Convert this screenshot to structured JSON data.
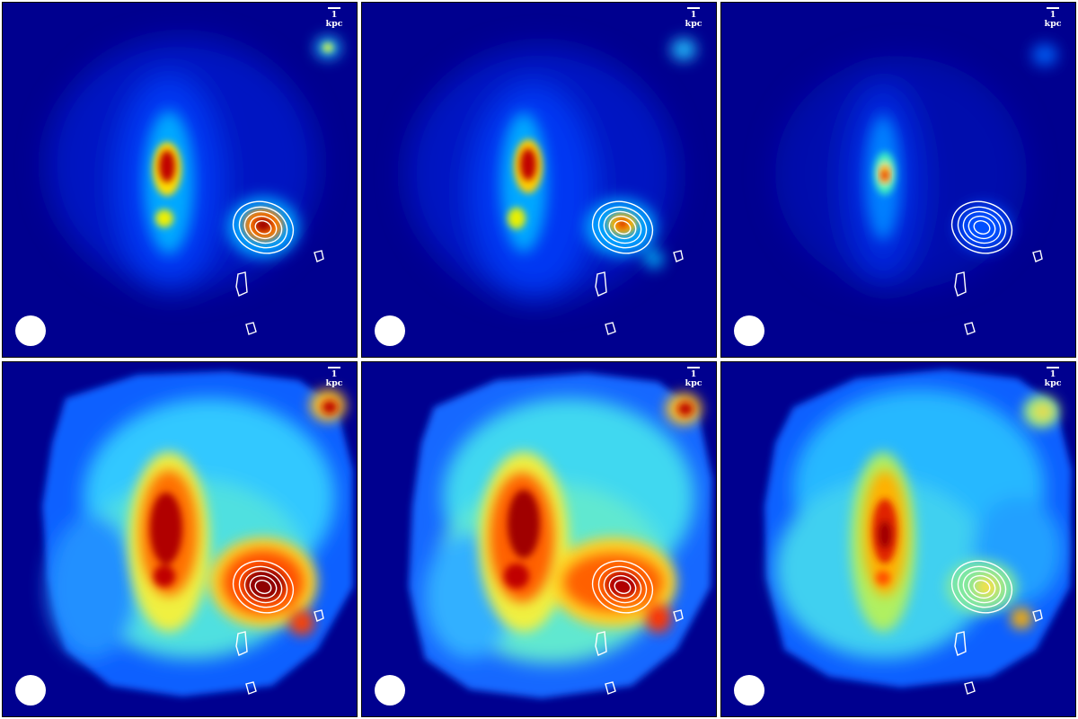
{
  "figure": {
    "scale_bar_label": "1 kpc",
    "panels": [
      {
        "id": "top-left",
        "colormap": "jet"
      },
      {
        "id": "top-middle",
        "colormap": "jet"
      },
      {
        "id": "top-right",
        "colormap": "jet"
      },
      {
        "id": "bottom-left",
        "colormap": "jet"
      },
      {
        "id": "bottom-middle",
        "colormap": "jet"
      },
      {
        "id": "bottom-right",
        "colormap": "jet"
      }
    ],
    "colors": {
      "background": "#00008f",
      "contour": "#ffffff",
      "frame": "#000000"
    }
  }
}
